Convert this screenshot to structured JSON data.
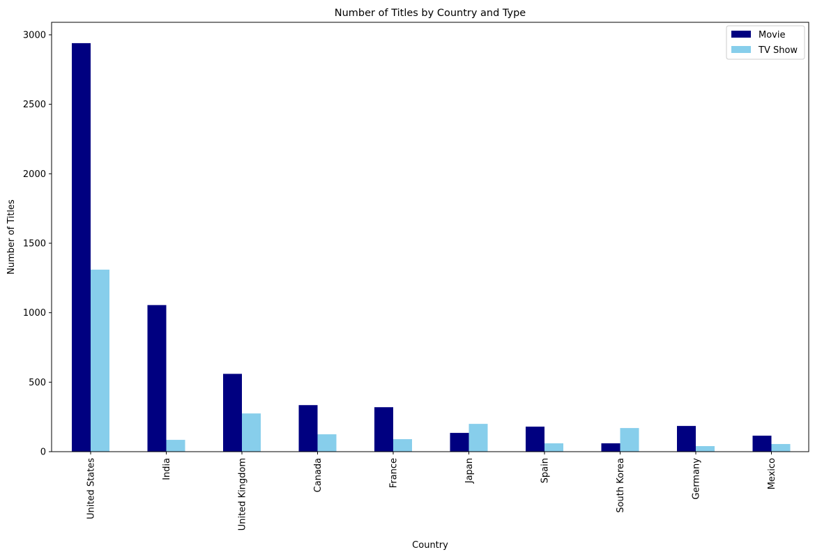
{
  "chart_data": {
    "type": "bar",
    "title": "Number of Titles by Country and Type",
    "xlabel": "Country",
    "ylabel": "Number of Titles",
    "categories": [
      "United States",
      "India",
      "United Kingdom",
      "Canada",
      "France",
      "Japan",
      "Spain",
      "South Korea",
      "Germany",
      "Mexico"
    ],
    "series": [
      {
        "name": "Movie",
        "color": "#000080",
        "values": [
          2940,
          1055,
          560,
          335,
          320,
          135,
          180,
          60,
          185,
          115
        ]
      },
      {
        "name": "TV Show",
        "color": "#87ceeb",
        "values": [
          1310,
          85,
          275,
          125,
          90,
          200,
          60,
          170,
          40,
          55
        ]
      }
    ],
    "ylim": [
      0,
      3090
    ],
    "yticks": [
      0,
      500,
      1000,
      1500,
      2000,
      2500,
      3000
    ],
    "grid": false,
    "legend_position": "top-right"
  }
}
